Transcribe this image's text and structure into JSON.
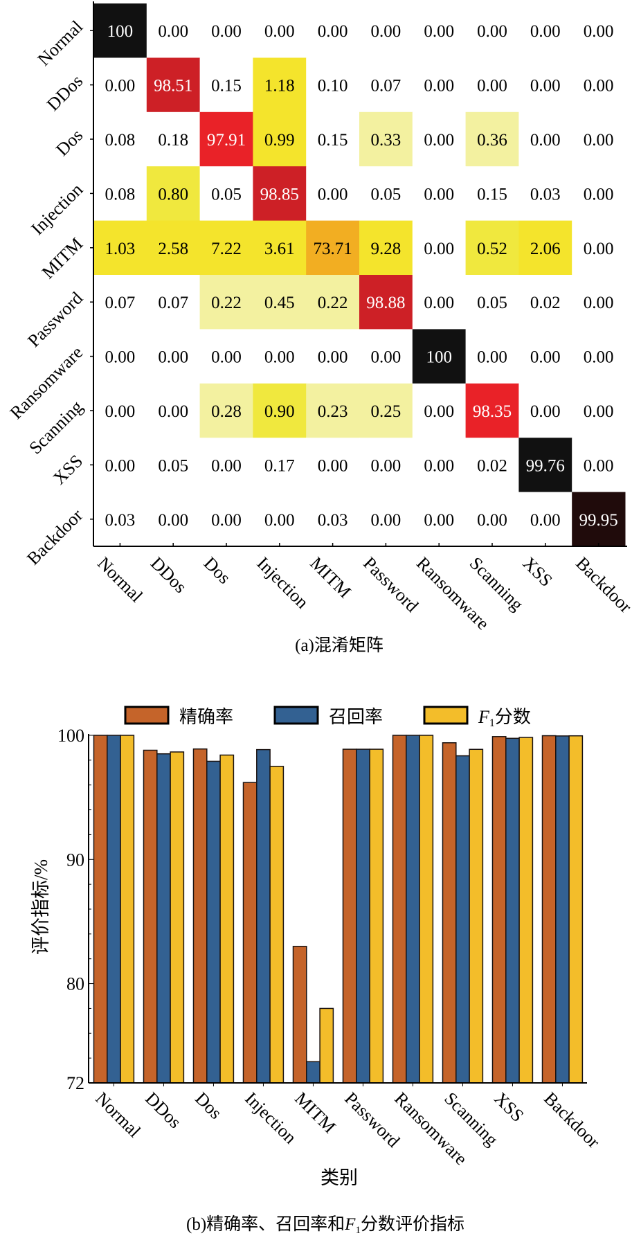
{
  "chart_data": [
    {
      "type": "heatmap",
      "title": "",
      "caption": "(a)混淆矩阵",
      "row_labels": [
        "Normal",
        "DDos",
        "Dos",
        "Injection",
        "MITM",
        "Password",
        "Ransomware",
        "Scanning",
        "XSS",
        "Backdoor"
      ],
      "col_labels": [
        "Normal",
        "DDos",
        "Dos",
        "Injection",
        "MITM",
        "Password",
        "Ransomware",
        "Scanning",
        "XSS",
        "Backdoor"
      ],
      "cell_text": [
        [
          "100",
          "0.00",
          "0.00",
          "0.00",
          "0.00",
          "0.00",
          "0.00",
          "0.00",
          "0.00",
          "0.00"
        ],
        [
          "0.00",
          "98.51",
          "0.15",
          "1.18",
          "0.10",
          "0.07",
          "0.00",
          "0.00",
          "0.00",
          "0.00"
        ],
        [
          "0.08",
          "0.18",
          "97.91",
          "0.99",
          "0.15",
          "0.33",
          "0.00",
          "0.36",
          "0.00",
          "0.00"
        ],
        [
          "0.08",
          "0.80",
          "0.05",
          "98.85",
          "0.00",
          "0.05",
          "0.00",
          "0.15",
          "0.03",
          "0.00"
        ],
        [
          "1.03",
          "2.58",
          "7.22",
          "3.61",
          "73.71",
          "9.28",
          "0.00",
          "0.52",
          "2.06",
          "0.00"
        ],
        [
          "0.07",
          "0.07",
          "0.22",
          "0.45",
          "0.22",
          "98.88",
          "0.00",
          "0.05",
          "0.02",
          "0.00"
        ],
        [
          "0.00",
          "0.00",
          "0.00",
          "0.00",
          "0.00",
          "0.00",
          "100",
          "0.00",
          "0.00",
          "0.00"
        ],
        [
          "0.00",
          "0.00",
          "0.28",
          "0.90",
          "0.23",
          "0.25",
          "0.00",
          "98.35",
          "0.00",
          "0.00"
        ],
        [
          "0.00",
          "0.05",
          "0.00",
          "0.17",
          "0.00",
          "0.00",
          "0.00",
          "0.02",
          "99.76",
          "0.00"
        ],
        [
          "0.03",
          "0.00",
          "0.00",
          "0.00",
          "0.03",
          "0.00",
          "0.00",
          "0.00",
          "0.00",
          "99.95"
        ]
      ],
      "values": [
        [
          100,
          0.0,
          0.0,
          0.0,
          0.0,
          0.0,
          0.0,
          0.0,
          0.0,
          0.0
        ],
        [
          0.0,
          98.51,
          0.15,
          1.18,
          0.1,
          0.07,
          0.0,
          0.0,
          0.0,
          0.0
        ],
        [
          0.08,
          0.18,
          97.91,
          0.99,
          0.15,
          0.33,
          0.0,
          0.36,
          0.0,
          0.0
        ],
        [
          0.08,
          0.8,
          0.05,
          98.85,
          0.0,
          0.05,
          0.0,
          0.15,
          0.03,
          0.0
        ],
        [
          1.03,
          2.58,
          7.22,
          3.61,
          73.71,
          9.28,
          0.0,
          0.52,
          2.06,
          0.0
        ],
        [
          0.07,
          0.07,
          0.22,
          0.45,
          0.22,
          98.88,
          0.0,
          0.05,
          0.02,
          0.0
        ],
        [
          0.0,
          0.0,
          0.0,
          0.0,
          0.0,
          0.0,
          100,
          0.0,
          0.0,
          0.0
        ],
        [
          0.0,
          0.0,
          0.28,
          0.9,
          0.23,
          0.25,
          0.0,
          98.35,
          0.0,
          0.0
        ],
        [
          0.0,
          0.05,
          0.0,
          0.17,
          0.0,
          0.0,
          0.0,
          0.02,
          99.76,
          0.0
        ],
        [
          0.03,
          0.0,
          0.0,
          0.0,
          0.03,
          0.0,
          0.0,
          0.0,
          0.0,
          99.95
        ]
      ],
      "colormap": [
        {
          "max": 0.2,
          "color": "#ffffff"
        },
        {
          "max": 0.5,
          "color": "#f3f1a0"
        },
        {
          "max": 0.95,
          "color": "#f0e83e"
        },
        {
          "max": 20,
          "color": "#f4e42c"
        },
        {
          "max": 90,
          "color": "#f2ae22"
        },
        {
          "max": 98.4,
          "color": "#e92228"
        },
        {
          "max": 99.0,
          "color": "#cd2026"
        },
        {
          "max": 99.9,
          "color": "#111111"
        },
        {
          "max": 99.99,
          "color": "#200b0b"
        },
        {
          "max": 100,
          "color": "#111111"
        }
      ],
      "text_colors": {
        "dark_cell": "#ffffff",
        "light_cell": "#000000"
      }
    },
    {
      "type": "bar",
      "caption": "(b)精确率、召回率和F1分数评价指标",
      "xlabel": "类别",
      "ylabel": "评价指标/%",
      "ylim": [
        72,
        100
      ],
      "yticks": [
        72,
        80,
        90,
        100
      ],
      "yminor_step": 2,
      "grid": false,
      "legend_position": "top",
      "categories": [
        "Normal",
        "DDos",
        "Dos",
        "Injection",
        "MITM",
        "Password",
        "Ransomware",
        "Scanning",
        "XSS",
        "Backdoor"
      ],
      "series": [
        {
          "name": "精确率",
          "color": "#c5642a",
          "values": [
            100,
            98.8,
            98.9,
            96.2,
            83.0,
            98.88,
            100,
            99.4,
            99.9,
            99.97
          ]
        },
        {
          "name": "召回率",
          "color": "#336192",
          "values": [
            100,
            98.51,
            97.91,
            98.85,
            73.71,
            98.88,
            100,
            98.35,
            99.76,
            99.95
          ]
        },
        {
          "name": "F1分数",
          "name_main": "F",
          "name_sub": "1",
          "name_rest": "分数",
          "color": "#f3bd2a",
          "values": [
            100,
            98.66,
            98.41,
            97.5,
            78.0,
            98.88,
            100,
            98.87,
            99.83,
            99.96
          ]
        }
      ]
    }
  ]
}
